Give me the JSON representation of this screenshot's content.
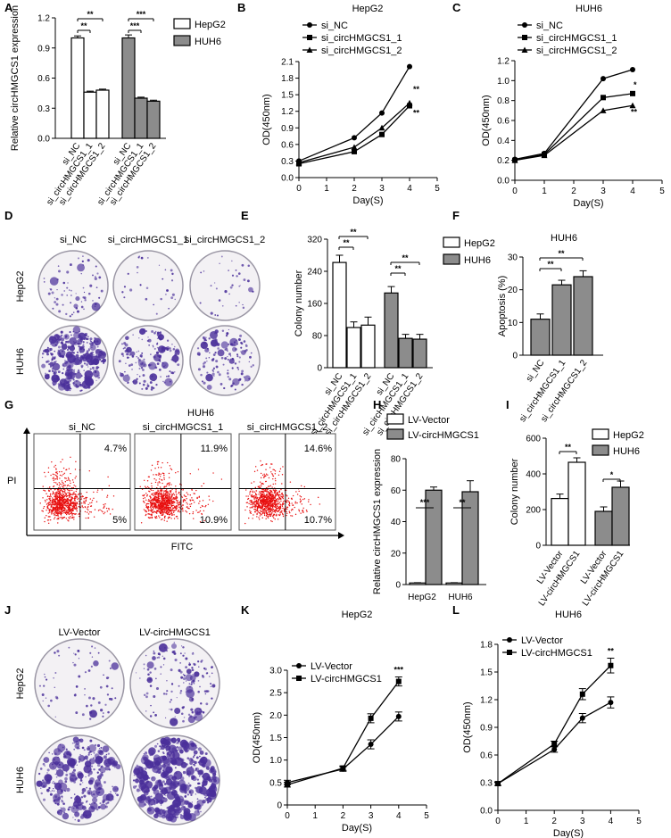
{
  "figure": {
    "colors": {
      "white_bar": "#ffffff",
      "gray_bar": "#8c8c8c",
      "ink": "#000000",
      "dots": "#e81010",
      "stain": "#4a2f9a"
    },
    "panels": [
      {
        "letter": "A"
      },
      {
        "letter": "B"
      },
      {
        "letter": "C"
      },
      {
        "letter": "D"
      },
      {
        "letter": "E"
      },
      {
        "letter": "F"
      },
      {
        "letter": "G"
      },
      {
        "letter": "H"
      },
      {
        "letter": "I"
      },
      {
        "letter": "J"
      },
      {
        "letter": "K"
      },
      {
        "letter": "L"
      }
    ]
  },
  "chart_data": [
    {
      "panel": "A",
      "type": "bar",
      "title": "",
      "ylabel": "Relative circHMGCS1 expression",
      "xlabel": "",
      "ylim": [
        0,
        1.2
      ],
      "yticks": [
        "0.0",
        "0.3",
        "0.6",
        "0.9",
        "1.2"
      ],
      "categories": [
        "si_NC",
        "si_circHMGCS1_1",
        "si_circHMGCS1_2",
        "si_NC",
        "si_circHMGCS1_1",
        "si_circHMGCS1_2"
      ],
      "groups": [
        "HepG2",
        "HepG2",
        "HepG2",
        "HUH6",
        "HUH6",
        "HUH6"
      ],
      "values": [
        1.0,
        0.46,
        0.48,
        1.0,
        0.4,
        0.37
      ],
      "errors": [
        0.02,
        0.01,
        0.01,
        0.03,
        0.01,
        0.01
      ],
      "legend": [
        "HepG2",
        "HUH6"
      ],
      "significance": [
        {
          "from": 0,
          "to": 1,
          "label": "**"
        },
        {
          "from": 0,
          "to": 2,
          "label": "**"
        },
        {
          "from": 3,
          "to": 4,
          "label": "***"
        },
        {
          "from": 3,
          "to": 5,
          "label": "***"
        }
      ]
    },
    {
      "panel": "B",
      "type": "line",
      "title": "HepG2",
      "xlabel": "Day(S)",
      "ylabel": "OD(450nm)",
      "xlim": [
        0,
        5
      ],
      "ylim": [
        0,
        2.1
      ],
      "xticks": [
        "0",
        "1",
        "2",
        "3",
        "4",
        "5"
      ],
      "yticks": [
        "0.0",
        "0.3",
        "0.6",
        "0.9",
        "1.2",
        "1.5",
        "1.8",
        "2.1"
      ],
      "x": [
        0,
        2,
        3,
        4
      ],
      "series": [
        {
          "name": "si_NC",
          "marker": "circle",
          "values": [
            0.3,
            0.72,
            1.17,
            2.01
          ]
        },
        {
          "name": "si_circHMGCS1_1",
          "marker": "square",
          "values": [
            0.25,
            0.47,
            0.78,
            1.3
          ]
        },
        {
          "name": "si_circHMGCS1_2",
          "marker": "triangle",
          "values": [
            0.27,
            0.55,
            0.9,
            1.35
          ]
        }
      ],
      "annotations": [
        "**",
        "**"
      ]
    },
    {
      "panel": "C",
      "type": "line",
      "title": "HUH6",
      "xlabel": "Day(S)",
      "ylabel": "OD(450nm)",
      "xlim": [
        0,
        5
      ],
      "ylim": [
        0,
        1.2
      ],
      "xticks": [
        "0",
        "1",
        "2",
        "3",
        "4",
        "5"
      ],
      "yticks": [
        "0.0",
        "0.2",
        "0.4",
        "0.6",
        "0.8",
        "1.0",
        "1.2"
      ],
      "x": [
        0,
        1,
        3,
        4
      ],
      "series": [
        {
          "name": "si_NC",
          "marker": "circle",
          "values": [
            0.21,
            0.27,
            1.02,
            1.11
          ]
        },
        {
          "name": "si_circHMGCS1_1",
          "marker": "square",
          "values": [
            0.2,
            0.26,
            0.83,
            0.87
          ]
        },
        {
          "name": "si_circHMGCS1_2",
          "marker": "triangle",
          "values": [
            0.2,
            0.25,
            0.7,
            0.75
          ]
        }
      ],
      "annotations": [
        "*",
        "**"
      ]
    },
    {
      "panel": "E",
      "type": "bar",
      "title": "",
      "ylabel": "Colony number",
      "xlabel": "",
      "ylim": [
        0,
        320
      ],
      "yticks": [
        "0",
        "80",
        "160",
        "240",
        "320"
      ],
      "categories": [
        "si_NC",
        "si_circHMGCS1_1",
        "si_circHMGCS1_2",
        "si_NC",
        "si_circHMGCS1_1",
        "si_circHMGCS1_2"
      ],
      "groups": [
        "HepG2",
        "HepG2",
        "HepG2",
        "HUH6",
        "HUH6",
        "HUH6"
      ],
      "values": [
        262,
        100,
        106,
        186,
        73,
        71
      ],
      "errors": [
        18,
        14,
        20,
        16,
        10,
        12
      ],
      "legend": [
        "HepG2",
        "HUH6"
      ],
      "significance": [
        {
          "from": 0,
          "to": 1,
          "label": "**"
        },
        {
          "from": 0,
          "to": 2,
          "label": "**"
        },
        {
          "from": 3,
          "to": 4,
          "label": "**"
        },
        {
          "from": 3,
          "to": 5,
          "label": "**"
        }
      ]
    },
    {
      "panel": "F",
      "type": "bar",
      "title": "HUH6",
      "ylabel": "Apoptosis (%)",
      "xlabel": "",
      "ylim": [
        0,
        30
      ],
      "yticks": [
        "0",
        "10",
        "20",
        "30"
      ],
      "categories": [
        "si_NC",
        "si_circHMGCS1_1",
        "si_circHMGCS1_2"
      ],
      "values": [
        11,
        21.5,
        24
      ],
      "errors": [
        1.6,
        1.4,
        1.8
      ],
      "significance": [
        {
          "from": 0,
          "to": 1,
          "label": "**"
        },
        {
          "from": 0,
          "to": 2,
          "label": "**"
        }
      ]
    },
    {
      "panel": "H",
      "type": "bar",
      "title": "",
      "ylabel": "Relative circHMGCS1 expression",
      "xlabel": "",
      "ylim": [
        0,
        80
      ],
      "yticks": [
        "0",
        "20",
        "40",
        "60",
        "80"
      ],
      "categories": [
        "HepG2",
        "HUH6"
      ],
      "series": [
        {
          "name": "LV-Vector",
          "values": [
            1,
            1
          ],
          "errors": [
            0.2,
            0.2
          ]
        },
        {
          "name": "LV-circHMGCS1",
          "values": [
            60,
            59
          ],
          "errors": [
            2,
            7
          ]
        }
      ],
      "significance": [
        {
          "category": 0,
          "label": "***"
        },
        {
          "category": 1,
          "label": "**"
        }
      ]
    },
    {
      "panel": "I",
      "type": "bar",
      "title": "",
      "ylabel": "Colony number",
      "xlabel": "",
      "ylim": [
        0,
        600
      ],
      "yticks": [
        "0",
        "200",
        "400",
        "600"
      ],
      "categories": [
        "LV-Vector",
        "LV-circHMGCS1",
        "LV-Vector",
        "LV-circHMGCS1"
      ],
      "groups": [
        "HepG2",
        "HepG2",
        "HUH6",
        "HUH6"
      ],
      "values": [
        262,
        465,
        190,
        325
      ],
      "errors": [
        25,
        25,
        25,
        35
      ],
      "legend": [
        "HepG2",
        "HUH6"
      ],
      "significance": [
        {
          "from": 0,
          "to": 1,
          "label": "**"
        },
        {
          "from": 2,
          "to": 3,
          "label": "*"
        }
      ]
    },
    {
      "panel": "K",
      "type": "line",
      "title": "HepG2",
      "xlabel": "Day(S)",
      "ylabel": "OD(450nm)",
      "xlim": [
        0,
        5
      ],
      "ylim": [
        0,
        3.0
      ],
      "xticks": [
        "0",
        "1",
        "2",
        "3",
        "4",
        "5"
      ],
      "yticks": [
        "0",
        "0.5",
        "1.0",
        "1.5",
        "2.0",
        "2.5",
        "3.0"
      ],
      "x": [
        0,
        2,
        3,
        4
      ],
      "series": [
        {
          "name": "LV-Vector",
          "marker": "circle",
          "values": [
            0.5,
            0.8,
            1.35,
            1.97
          ],
          "errors": [
            0.05,
            0.05,
            0.1,
            0.1
          ]
        },
        {
          "name": "LV-circHMGCS1",
          "marker": "square",
          "values": [
            0.45,
            0.82,
            1.93,
            2.75
          ],
          "errors": [
            0.05,
            0.05,
            0.1,
            0.1
          ]
        }
      ],
      "annotations": [
        "***"
      ]
    },
    {
      "panel": "L",
      "type": "line",
      "title": "HUH6",
      "xlabel": "Day(S)",
      "ylabel": "OD(450nm)",
      "xlim": [
        0,
        5
      ],
      "ylim": [
        0,
        1.8
      ],
      "xticks": [
        "0",
        "1",
        "2",
        "3",
        "4",
        "5"
      ],
      "yticks": [
        "0.0",
        "0.3",
        "0.6",
        "0.9",
        "1.2",
        "1.5",
        "1.8"
      ],
      "x": [
        0,
        2,
        3,
        4
      ],
      "series": [
        {
          "name": "LV-Vector",
          "marker": "circle",
          "values": [
            0.29,
            0.66,
            1.0,
            1.17
          ],
          "errors": [
            0.02,
            0.03,
            0.05,
            0.06
          ]
        },
        {
          "name": "LV-circHMGCS1",
          "marker": "square",
          "values": [
            0.29,
            0.72,
            1.26,
            1.57
          ],
          "errors": [
            0.02,
            0.03,
            0.06,
            0.08
          ]
        }
      ],
      "annotations": [
        "**"
      ]
    }
  ],
  "plates": {
    "D": {
      "columns": [
        "si_NC",
        "si_circHMGCS1_1",
        "si_circHMGCS1_2"
      ],
      "rows": [
        "HepG2",
        "HUH6"
      ]
    },
    "J": {
      "columns": [
        "LV-Vector",
        "LV-circHMGCS1"
      ],
      "rows": [
        "HepG2",
        "HUH6"
      ]
    }
  },
  "flow": {
    "title": "HUH6",
    "xlabel": "FITC",
    "ylabel": "PI",
    "plots": [
      {
        "label": "si_NC",
        "upper_right": "4.7%",
        "lower_right": "5%"
      },
      {
        "label": "si_circHMGCS1_1",
        "upper_right": "11.9%",
        "lower_right": "10.9%"
      },
      {
        "label": "si_circHMGCS1_2",
        "upper_right": "14.6%",
        "lower_right": "10.7%"
      }
    ]
  }
}
